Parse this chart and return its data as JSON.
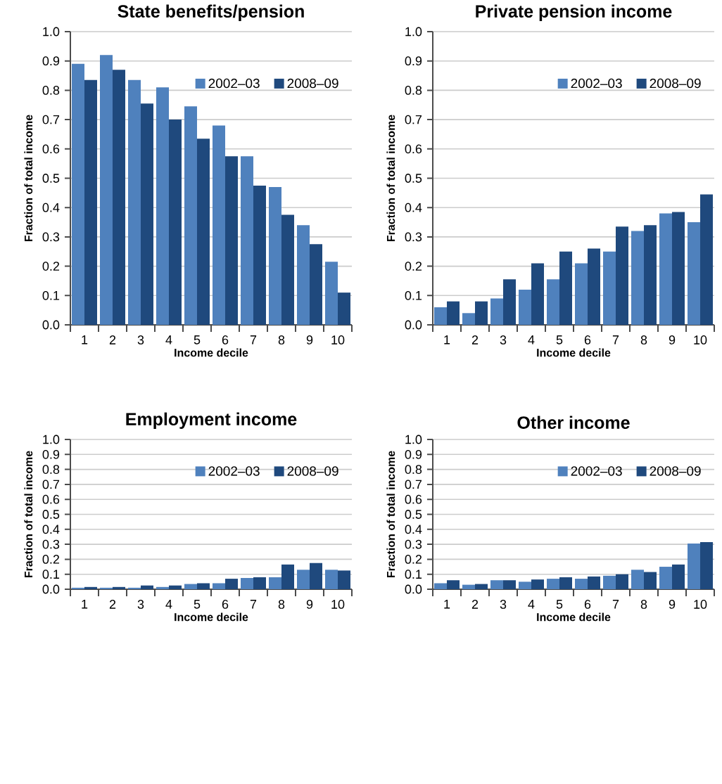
{
  "chart_data": [
    {
      "type": "bar",
      "title": "State benefits/pension",
      "xlabel": "Income decile",
      "ylabel": "Fraction of total income",
      "categories": [
        "1",
        "2",
        "3",
        "4",
        "5",
        "6",
        "7",
        "8",
        "9",
        "10"
      ],
      "series": [
        {
          "name": "2002–03",
          "color": "#4f81bd",
          "values": [
            0.89,
            0.92,
            0.835,
            0.81,
            0.745,
            0.68,
            0.575,
            0.47,
            0.34,
            0.215
          ]
        },
        {
          "name": "2008–09",
          "color": "#1f497d",
          "values": [
            0.835,
            0.87,
            0.755,
            0.7,
            0.635,
            0.575,
            0.475,
            0.375,
            0.275,
            0.11
          ]
        }
      ],
      "ylim": [
        0,
        1
      ],
      "yticks": [
        {
          "value": 0,
          "label": "0.0"
        },
        {
          "value": 0.1,
          "label": "0.1"
        },
        {
          "value": 0.2,
          "label": "0.2"
        },
        {
          "value": 0.3,
          "label": "0.3"
        },
        {
          "value": 0.4,
          "label": "0.4"
        },
        {
          "value": 0.5,
          "label": "0.5"
        },
        {
          "value": 0.6,
          "label": "0.6"
        },
        {
          "value": 0.7,
          "label": "0.7"
        },
        {
          "value": 0.8,
          "label": "0.8"
        },
        {
          "value": 0.9,
          "label": "0.9"
        },
        {
          "value": 1,
          "label": "1.0"
        }
      ],
      "grid": "y",
      "legend": "top right"
    },
    {
      "type": "bar",
      "title": "Private pension income",
      "xlabel": "Income decile",
      "ylabel": "Fraction of total income",
      "categories": [
        "1",
        "2",
        "3",
        "4",
        "5",
        "6",
        "7",
        "8",
        "9",
        "10"
      ],
      "series": [
        {
          "name": "2002–03",
          "color": "#4f81bd",
          "values": [
            0.06,
            0.04,
            0.09,
            0.12,
            0.155,
            0.21,
            0.25,
            0.32,
            0.38,
            0.35
          ]
        },
        {
          "name": "2008–09",
          "color": "#1f497d",
          "values": [
            0.08,
            0.08,
            0.155,
            0.21,
            0.25,
            0.26,
            0.335,
            0.34,
            0.385,
            0.445
          ]
        }
      ],
      "ylim": [
        0,
        1
      ],
      "yticks": [
        {
          "value": 0,
          "label": "0.0"
        },
        {
          "value": 0.1,
          "label": "0.1"
        },
        {
          "value": 0.2,
          "label": "0.2"
        },
        {
          "value": 0.3,
          "label": "0.3"
        },
        {
          "value": 0.4,
          "label": "0.4"
        },
        {
          "value": 0.5,
          "label": "0.5"
        },
        {
          "value": 0.6,
          "label": "0.6"
        },
        {
          "value": 0.7,
          "label": "0.7"
        },
        {
          "value": 0.8,
          "label": "0.8"
        },
        {
          "value": 0.9,
          "label": "0.9"
        },
        {
          "value": 1,
          "label": "1.0"
        }
      ],
      "grid": "y",
      "legend": "top right"
    },
    {
      "type": "bar",
      "title": "Employment income",
      "xlabel": "Income decile",
      "ylabel": "Fraction of total income",
      "categories": [
        "1",
        "2",
        "3",
        "4",
        "5",
        "6",
        "7",
        "8",
        "9",
        "10"
      ],
      "series": [
        {
          "name": "2002–03",
          "color": "#4f81bd",
          "values": [
            0.01,
            0.01,
            0.01,
            0.015,
            0.035,
            0.04,
            0.075,
            0.08,
            0.13,
            0.13
          ]
        },
        {
          "name": "2008–09",
          "color": "#1f497d",
          "values": [
            0.015,
            0.015,
            0.025,
            0.025,
            0.04,
            0.07,
            0.08,
            0.165,
            0.175,
            0.125
          ]
        }
      ],
      "ylim": [
        0,
        1
      ],
      "yticks": [
        {
          "value": 0,
          "label": "0.0"
        },
        {
          "value": 0.1,
          "label": "0.1"
        },
        {
          "value": 0.2,
          "label": "0.2"
        },
        {
          "value": 0.3,
          "label": "0.3"
        },
        {
          "value": 0.4,
          "label": "0.4"
        },
        {
          "value": 0.5,
          "label": "0.5"
        },
        {
          "value": 0.6,
          "label": "0.6"
        },
        {
          "value": 0.7,
          "label": "0.7"
        },
        {
          "value": 0.8,
          "label": "0.8"
        },
        {
          "value": 0.9,
          "label": "0.9"
        },
        {
          "value": 1,
          "label": "1.0"
        }
      ],
      "grid": "y",
      "legend": "top right"
    },
    {
      "type": "bar",
      "title": "Other income",
      "xlabel": "Income decile",
      "ylabel": "Fraction of total income",
      "categories": [
        "1",
        "2",
        "3",
        "4",
        "5",
        "6",
        "7",
        "8",
        "9",
        "10"
      ],
      "series": [
        {
          "name": "2002–03",
          "color": "#4f81bd",
          "values": [
            0.04,
            0.03,
            0.06,
            0.05,
            0.07,
            0.07,
            0.09,
            0.13,
            0.15,
            0.305
          ]
        },
        {
          "name": "2008–09",
          "color": "#1f497d",
          "values": [
            0.06,
            0.035,
            0.06,
            0.065,
            0.08,
            0.085,
            0.1,
            0.115,
            0.165,
            0.315
          ]
        }
      ],
      "ylim": [
        0,
        1
      ],
      "yticks": [
        {
          "value": 0,
          "label": "0.0"
        },
        {
          "value": 0.1,
          "label": "0.1"
        },
        {
          "value": 0.2,
          "label": "0.2"
        },
        {
          "value": 0.3,
          "label": "0.3"
        },
        {
          "value": 0.4,
          "label": "0.4"
        },
        {
          "value": 0.5,
          "label": "0.5"
        },
        {
          "value": 0.6,
          "label": "0.6"
        },
        {
          "value": 0.7,
          "label": "0.7"
        },
        {
          "value": 0.8,
          "label": "0.8"
        },
        {
          "value": 0.9,
          "label": "0.9"
        },
        {
          "value": 1,
          "label": "1.0"
        }
      ],
      "grid": "y",
      "legend": "top right"
    }
  ]
}
